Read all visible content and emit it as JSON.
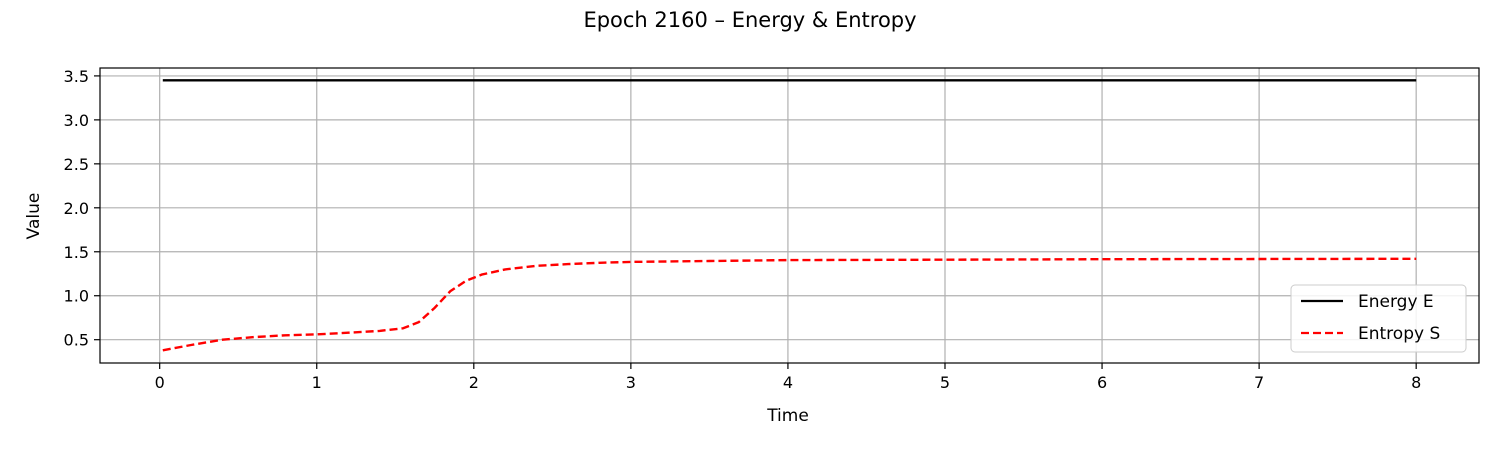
{
  "chart_data": {
    "type": "line",
    "title": "Epoch 2160 – Energy & Entropy",
    "xlabel": "Time",
    "ylabel": "Value",
    "xlim": [
      -0.38,
      8.4
    ],
    "ylim": [
      0.235,
      3.59
    ],
    "xticks": [
      0,
      1,
      2,
      3,
      4,
      5,
      6,
      7,
      8
    ],
    "yticks": [
      0.5,
      1.0,
      1.5,
      2.0,
      2.5,
      3.0,
      3.5
    ],
    "ytick_labels": [
      "0.5",
      "1.0",
      "1.5",
      "2.0",
      "2.5",
      "3.0",
      "3.5"
    ],
    "grid": true,
    "legend_position": "lower-right",
    "series": [
      {
        "name": "Energy E",
        "color": "#000000",
        "style": "solid",
        "x": [
          0.02,
          1,
          2,
          3,
          4,
          5,
          6,
          7,
          8
        ],
        "y": [
          3.45,
          3.45,
          3.45,
          3.45,
          3.45,
          3.45,
          3.45,
          3.45,
          3.45
        ]
      },
      {
        "name": "Entropy S",
        "color": "#ff0000",
        "style": "dashed",
        "x": [
          0.02,
          0.2,
          0.4,
          0.6,
          0.8,
          1.0,
          1.2,
          1.4,
          1.55,
          1.65,
          1.75,
          1.85,
          1.95,
          2.05,
          2.2,
          2.4,
          2.6,
          2.8,
          3.0,
          3.5,
          4.0,
          5.0,
          6.0,
          7.0,
          8.0
        ],
        "y": [
          0.38,
          0.44,
          0.5,
          0.53,
          0.55,
          0.56,
          0.58,
          0.6,
          0.63,
          0.7,
          0.86,
          1.05,
          1.17,
          1.24,
          1.3,
          1.34,
          1.36,
          1.375,
          1.385,
          1.395,
          1.405,
          1.41,
          1.415,
          1.418,
          1.42
        ]
      }
    ]
  }
}
